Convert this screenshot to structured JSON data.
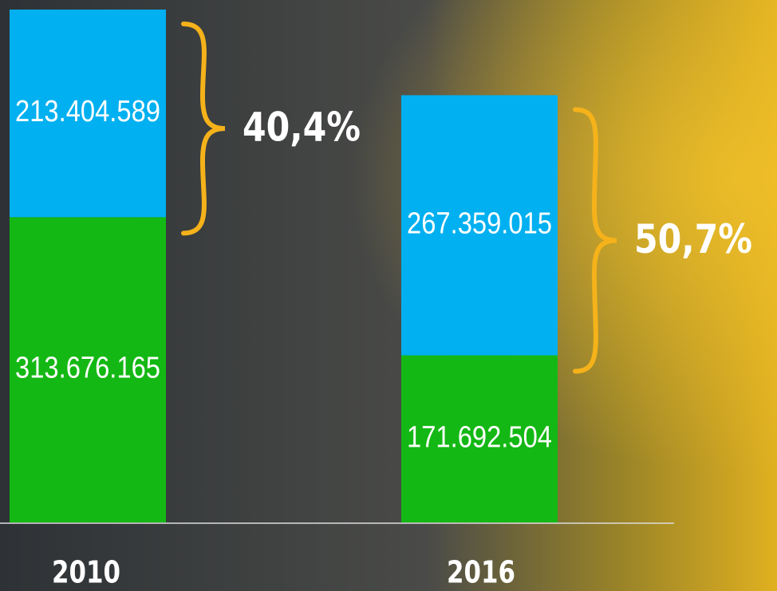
{
  "chart_data": {
    "type": "stacked_bar",
    "categories": [
      "2010",
      "2016"
    ],
    "series": [
      {
        "name": null,
        "color": "#14b814",
        "values": [
          313676165,
          171692504
        ],
        "value_labels": [
          "313.676.165",
          "171.692.504"
        ]
      },
      {
        "name": null,
        "color": "#00b0f0",
        "values": [
          213404589,
          267359015
        ],
        "value_labels": [
          "213.404.589",
          "267.359.015"
        ]
      }
    ],
    "annotations": [
      "40,4%",
      "50,7%"
    ],
    "brace_color": "#f5b21a"
  }
}
